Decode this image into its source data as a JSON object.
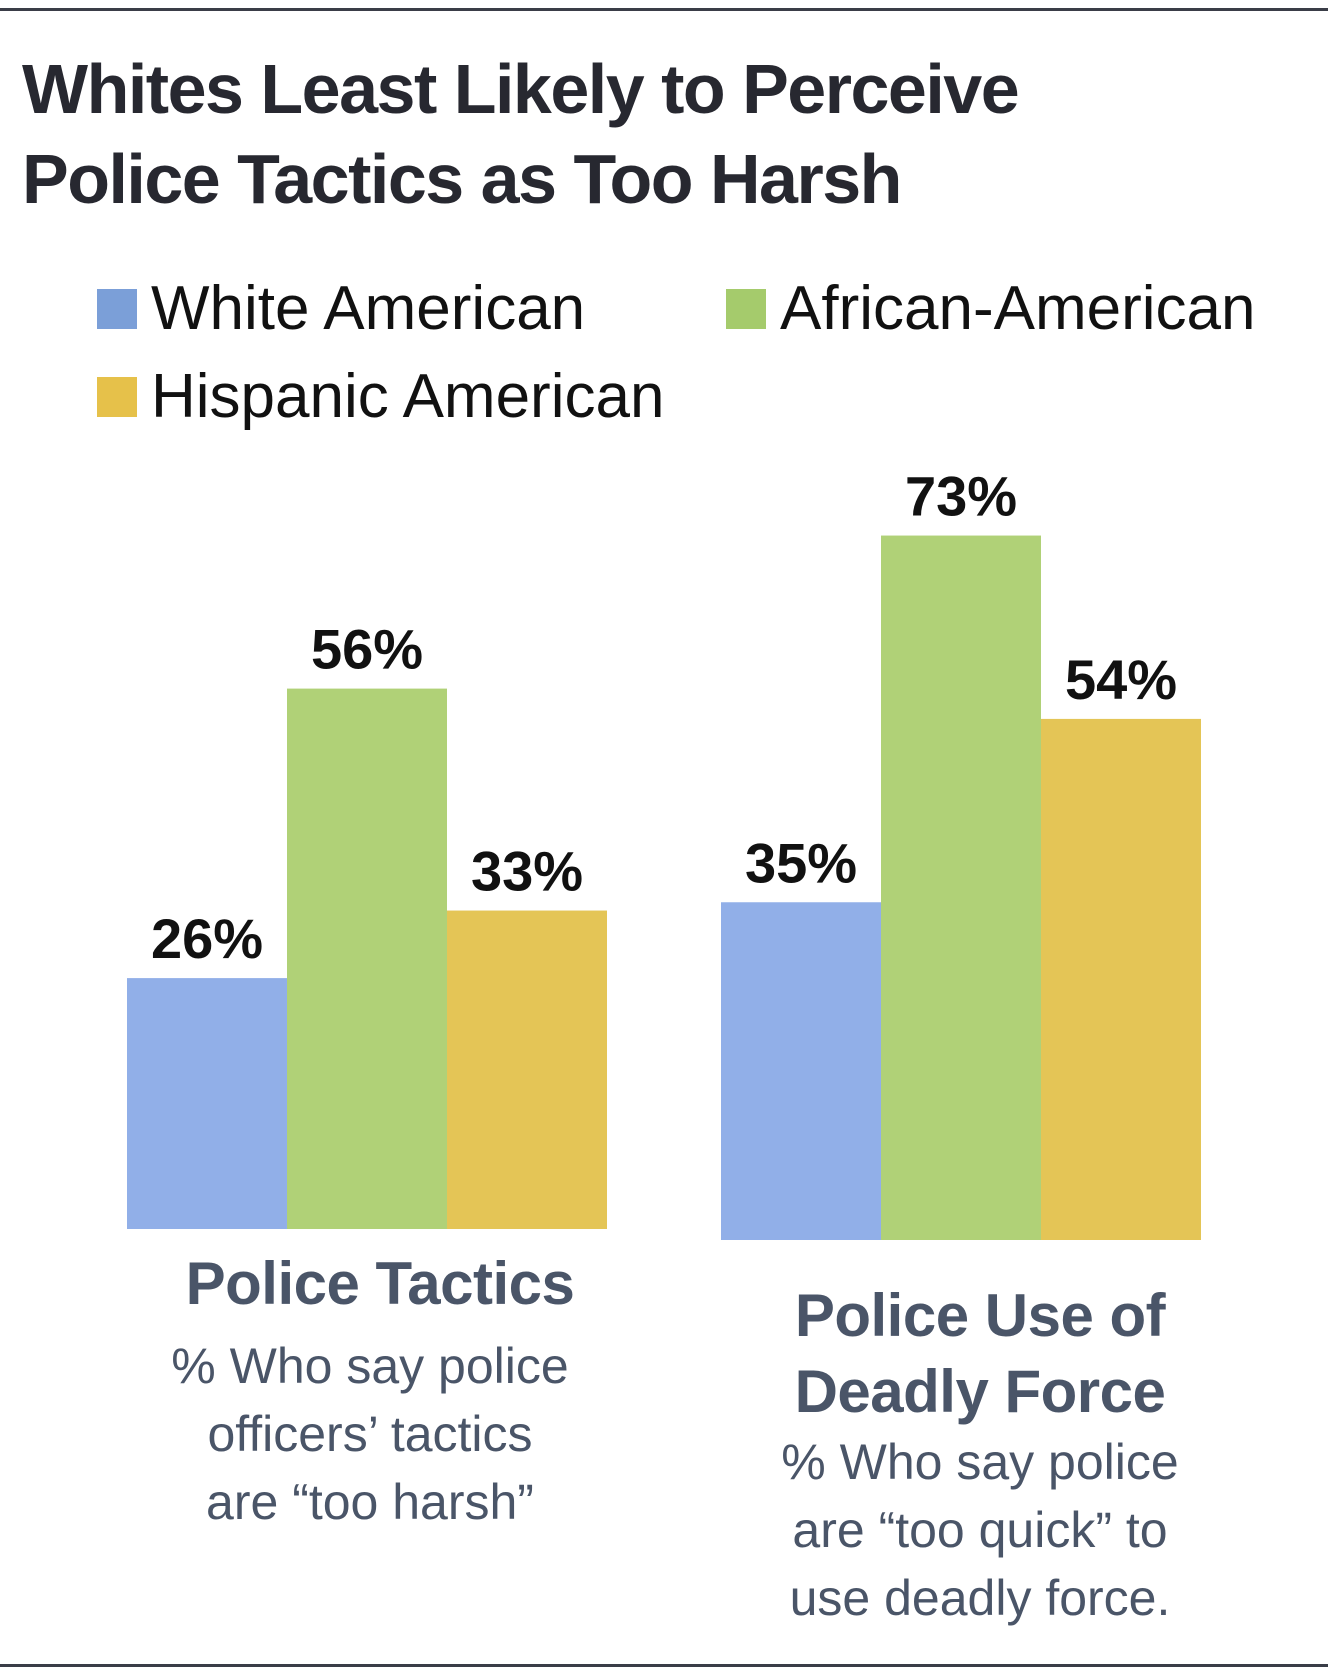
{
  "chart_data": {
    "type": "bar",
    "title": "Whites Least Likely to Perceive Police Tactics as Too Harsh",
    "xlabel": "",
    "ylabel": "",
    "ylim": [
      0,
      100
    ],
    "grid": false,
    "legend_position": "top",
    "categories": [
      "Police Tactics",
      "Police Use of Deadly Force"
    ],
    "category_subtitles": [
      "% Who say police officers’ tactics are “too harsh”",
      "% Who say police are “too quick” to use deadly force."
    ],
    "series": [
      {
        "name": "White American",
        "color": "#91afe8",
        "values": [
          26,
          35
        ],
        "labels": [
          "26%",
          "35%"
        ]
      },
      {
        "name": "African-American",
        "color": "#b0d177",
        "values": [
          56,
          73
        ],
        "labels": [
          "56%",
          "73%"
        ]
      },
      {
        "name": "Hispanic American",
        "color": "#e4c556",
        "values": [
          33,
          54
        ],
        "labels": [
          "33%",
          "54%"
        ]
      }
    ]
  },
  "title_lines": [
    "Whites Least Likely to Perceive",
    "Police Tactics as Too Harsh"
  ],
  "legend": {
    "items": [
      {
        "label": "White American",
        "color": "#7b9fd8"
      },
      {
        "label": "African-American",
        "color": "#a5cb6c"
      },
      {
        "label": "Hispanic American",
        "color": "#e6c14a"
      }
    ]
  },
  "groups": [
    {
      "title_lines": [
        "Police Tactics"
      ],
      "subtitle_lines": [
        "% Who say police",
        "officers’ tactics",
        "are “too harsh”"
      ]
    },
    {
      "title_lines": [
        "Police Use of",
        "Deadly Force"
      ],
      "subtitle_lines": [
        "% Who say police",
        "are “too quick” to",
        "use deadly force."
      ]
    }
  ]
}
